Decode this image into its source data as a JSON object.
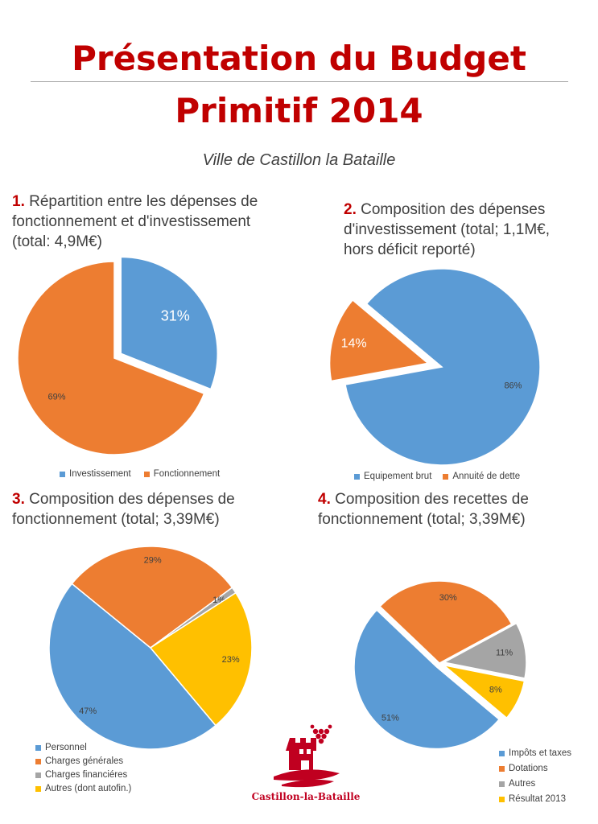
{
  "header": {
    "title_line1": "Présentation du Budget",
    "title_line2": "Primitif 2014",
    "subtitle": "Ville de Castillon la Bataille"
  },
  "colors": {
    "title": "#c00000",
    "blue": "#5b9bd5",
    "orange": "#ed7d31",
    "gray": "#a5a5a5",
    "yellow": "#ffc000"
  },
  "logo": {
    "text": "Castillon-la-Bataille",
    "icon": "castle-grapes-logo-icon"
  },
  "chart_data": [
    {
      "type": "pie",
      "number": "1.",
      "title": "Répartition entre les dépenses de fonctionnement et d'investissement (total: 4,9M€)",
      "title_lines": [
        "Répartition entre les dépenses de",
        "fonctionnement et d'investissement",
        "(total: 4,9M€)"
      ],
      "legend_position": "bottom",
      "series": [
        {
          "name": "Investissement",
          "value": 31,
          "label": "31%",
          "color": "#5b9bd5",
          "exploded": true
        },
        {
          "name": "Fonctionnement",
          "value": 69,
          "label": "69%",
          "color": "#ed7d31"
        }
      ]
    },
    {
      "type": "pie",
      "number": "2.",
      "title": "Composition des dépenses d'investissement (total; 1,1M€, hors déficit reporté)",
      "title_lines": [
        "Composition des dépenses",
        "d'investissement (total; 1,1M€,",
        "hors déficit reporté)"
      ],
      "legend_position": "bottom",
      "series": [
        {
          "name": "Equipement brut",
          "value": 86,
          "label": "86%",
          "color": "#5b9bd5"
        },
        {
          "name": "Annuité de dette",
          "value": 14,
          "label": "14%",
          "color": "#ed7d31",
          "exploded": true
        }
      ]
    },
    {
      "type": "pie",
      "number": "3.",
      "title": "Composition des dépenses de fonctionnement (total; 3,39M€)",
      "title_lines": [
        "Composition des dépenses de",
        "fonctionnement (total; 3,39M€)"
      ],
      "legend_position": "bottom-left",
      "series": [
        {
          "name": "Personnel",
          "value": 47,
          "label": "47%",
          "color": "#5b9bd5"
        },
        {
          "name": "Charges générales",
          "value": 29,
          "label": "29%",
          "color": "#ed7d31"
        },
        {
          "name": "Charges financiéres",
          "value": 1,
          "label": "1%",
          "color": "#a5a5a5"
        },
        {
          "name": "Autres (dont autofin.)",
          "value": 23,
          "label": "23%",
          "color": "#ffc000"
        }
      ]
    },
    {
      "type": "pie",
      "number": "4.",
      "title": "Composition des recettes de fonctionnement (total; 3,39M€)",
      "title_lines": [
        "Composition des recettes de",
        "fonctionnement (total; 3,39M€)"
      ],
      "legend_position": "bottom-right",
      "series": [
        {
          "name": "Impôts et taxes",
          "value": 51,
          "label": "51%",
          "color": "#5b9bd5",
          "exploded": true
        },
        {
          "name": "Dotations",
          "value": 30,
          "label": "30%",
          "color": "#ed7d31"
        },
        {
          "name": "Autres",
          "value": 11,
          "label": "11%",
          "color": "#a5a5a5",
          "exploded": true
        },
        {
          "name": "Résultat 2013",
          "value": 8,
          "label": "8%",
          "color": "#ffc000",
          "exploded": true
        }
      ]
    }
  ]
}
